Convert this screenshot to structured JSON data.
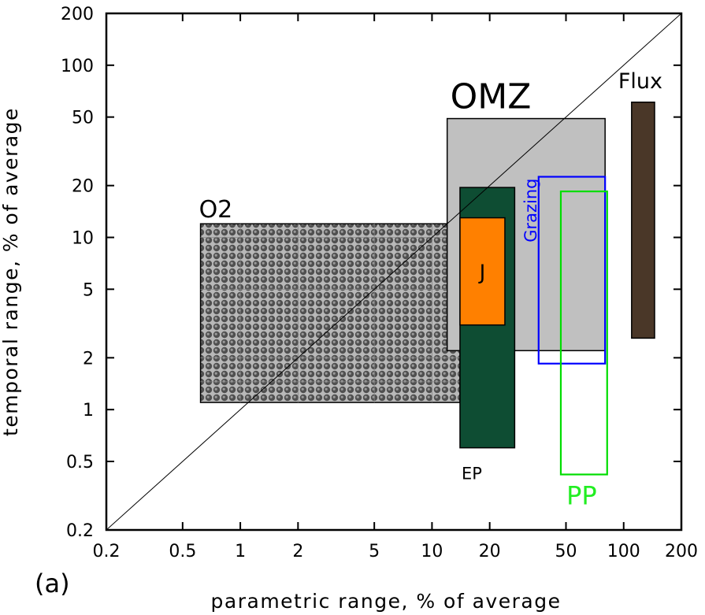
{
  "chart_data": {
    "type": "range-box",
    "panel_label": "(a)",
    "xlabel": "parametric range, % of average",
    "ylabel": "temporal range, % of average",
    "xscale": "log",
    "yscale": "log",
    "xlim": [
      0.2,
      200
    ],
    "ylim": [
      0.2,
      200
    ],
    "xticks": [
      0.2,
      0.5,
      1,
      2,
      5,
      10,
      20,
      50,
      100,
      200
    ],
    "xtick_labels": [
      "0.2",
      "0.5",
      "1",
      "2",
      "5",
      "10",
      "20",
      "50",
      "100",
      "200"
    ],
    "yticks": [
      0.2,
      0.5,
      1,
      2,
      5,
      10,
      20,
      50,
      100,
      200
    ],
    "ytick_labels": [
      "0.2",
      "0.5",
      "1",
      "2",
      "5",
      "10",
      "20",
      "50",
      "100",
      "200"
    ],
    "diagonal": true,
    "boxes": [
      {
        "name": "O2",
        "label": "O2",
        "x": [
          0.62,
          14
        ],
        "y": [
          1.1,
          12
        ],
        "fill": "pattern",
        "stroke": "#000000",
        "label_color": "#000000"
      },
      {
        "name": "OMZ",
        "label": "OMZ",
        "x": [
          12,
          80
        ],
        "y": [
          2.2,
          49
        ],
        "fill": "#c0c0c0",
        "stroke": "#000000",
        "label_color": "#000000"
      },
      {
        "name": "EP",
        "label": "EP",
        "x": [
          14,
          27
        ],
        "y": [
          0.6,
          19.5
        ],
        "fill": "#0e4d33",
        "stroke": "#000000",
        "label_color": "#000000"
      },
      {
        "name": "J",
        "label": "J",
        "x": [
          14,
          24
        ],
        "y": [
          3.1,
          13
        ],
        "fill": "#ff8000",
        "stroke": "#000000",
        "label_color": "#000000"
      },
      {
        "name": "Grazing",
        "label": "Grazing",
        "x": [
          36,
          80
        ],
        "y": [
          1.85,
          22.5
        ],
        "fill": "none",
        "stroke": "#0000ff",
        "label_color": "#0000ff"
      },
      {
        "name": "PP",
        "label": "PP",
        "x": [
          47,
          82
        ],
        "y": [
          0.42,
          18.5
        ],
        "fill": "none",
        "stroke": "#00dd00",
        "label_color": "#22ee22"
      },
      {
        "name": "Flux",
        "label": "Flux",
        "x": [
          110,
          145
        ],
        "y": [
          2.6,
          61
        ],
        "fill": "#4a3728",
        "stroke": "#000000",
        "label_color": "#000000"
      }
    ]
  }
}
